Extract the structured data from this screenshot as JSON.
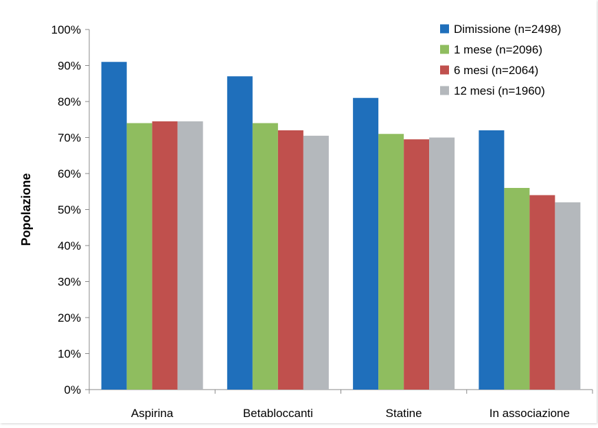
{
  "chart_data": {
    "type": "bar",
    "title": "",
    "xlabel": "",
    "ylabel": "Popolazione",
    "ylim": [
      0,
      100
    ],
    "yticks": [
      "0%",
      "10%",
      "20%",
      "30%",
      "40%",
      "50%",
      "60%",
      "70%",
      "80%",
      "90%",
      "100%"
    ],
    "grid": false,
    "legend_position": "top-right",
    "categories": [
      "Aspirina",
      "Betabloccanti",
      "Statine",
      "In associazione"
    ],
    "series": [
      {
        "name": "Dimissione (n=2498)",
        "color": "#1f6fbb",
        "values": [
          91,
          87,
          81,
          72
        ]
      },
      {
        "name": "1 mese (n=2096)",
        "color": "#8fbd5f",
        "values": [
          74,
          74,
          71,
          56
        ]
      },
      {
        "name": "6 mesi (n=2064)",
        "color": "#c0504d",
        "values": [
          74.5,
          72,
          69.5,
          54
        ]
      },
      {
        "name": "12 mesi (n=1960)",
        "color": "#b4b8bc",
        "values": [
          74.5,
          70.5,
          70,
          52
        ]
      }
    ]
  }
}
